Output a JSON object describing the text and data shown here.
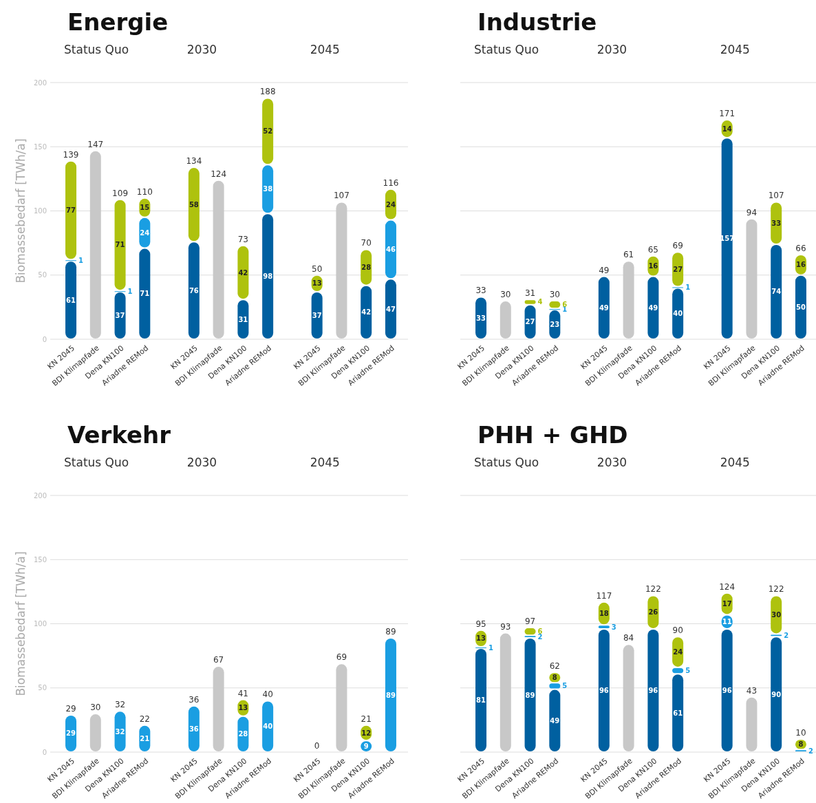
{
  "chart_data": [
    {
      "type": "bar",
      "stacked": true,
      "title": "Energie",
      "ylabel": "Biomassebedarf [TWh/a]",
      "annotations": [
        "Status Quo",
        "2030",
        "2045"
      ],
      "categories": [
        "KN 2045",
        "BDI Klimapfade",
        "Dena KN100",
        "Ariadne REMod",
        "KN 2045",
        "BDI Klimapfade",
        "Dena KN100",
        "Ariadne REMod",
        "KN 2045",
        "BDI Klimapfade",
        "Dena KN100",
        "Ariadne REMod"
      ],
      "series": [
        {
          "color": "#0060a0",
          "values": [
            61,
            null,
            37,
            71,
            76,
            null,
            31,
            98,
            37,
            null,
            42,
            47
          ],
          "value_labels": [
            "61",
            null,
            "37",
            "71",
            "76",
            null,
            "31",
            "98",
            "37",
            null,
            "42",
            "47"
          ]
        },
        {
          "color": "#1a9ee2",
          "values": [
            1,
            null,
            1,
            24,
            null,
            null,
            null,
            38,
            null,
            null,
            null,
            46
          ],
          "value_labels": [
            "1",
            null,
            "1",
            "24",
            null,
            null,
            null,
            "38",
            null,
            null,
            null,
            "46"
          ]
        },
        {
          "color": "#aec20e",
          "values": [
            77,
            null,
            71,
            15,
            58,
            null,
            42,
            52,
            13,
            null,
            28,
            24
          ],
          "value_labels": [
            "77",
            null,
            "71",
            "15",
            "58",
            null,
            "42",
            "52",
            "13",
            null,
            "28",
            "24"
          ]
        },
        {
          "color": "#c8c8c8",
          "values": [
            null,
            147,
            null,
            null,
            null,
            124,
            null,
            null,
            null,
            107,
            null,
            null
          ]
        }
      ],
      "totals": [
        "139",
        "147",
        "109",
        "110",
        "134",
        "124",
        "73",
        "188",
        "50",
        "107",
        "70",
        "116"
      ],
      "ylim": [
        0,
        200
      ],
      "yticks": [
        0,
        50,
        100,
        150,
        200
      ],
      "grid": "y"
    },
    {
      "type": "bar",
      "stacked": true,
      "title": "Industrie",
      "annotations": [
        "Status Quo",
        "2030",
        "2045"
      ],
      "categories": [
        "KN 2045",
        "BDI Klimapfade",
        "Dena KN100",
        "Ariadne REMod",
        "KN 2045",
        "BDI Klimapfade",
        "Dena KN100",
        "Ariadne REMod",
        "KN 2045",
        "BDI Klimapfade",
        "Dena KN100",
        "Ariadne REMod"
      ],
      "series": [
        {
          "color": "#0060a0",
          "values": [
            33,
            null,
            27,
            23,
            49,
            null,
            49,
            40,
            157,
            null,
            74,
            50
          ],
          "value_labels": [
            "33",
            null,
            "27",
            "23",
            "49",
            null,
            "49",
            "40",
            "157",
            null,
            "74",
            "50"
          ]
        },
        {
          "color": "#1a9ee2",
          "values": [
            null,
            null,
            null,
            1,
            null,
            null,
            null,
            1,
            null,
            null,
            null,
            null
          ],
          "value_labels": [
            null,
            null,
            null,
            "1",
            null,
            null,
            null,
            "1",
            null,
            null,
            null,
            null
          ]
        },
        {
          "color": "#aec20e",
          "values": [
            null,
            null,
            4,
            6,
            null,
            null,
            16,
            27,
            14,
            null,
            33,
            16
          ],
          "value_labels": [
            null,
            null,
            "4",
            "6",
            null,
            null,
            "16",
            "27",
            "14",
            null,
            "33",
            "16"
          ]
        },
        {
          "color": "#c8c8c8",
          "values": [
            null,
            30,
            null,
            null,
            null,
            61,
            null,
            null,
            null,
            94,
            null,
            null
          ]
        }
      ],
      "totals": [
        "33",
        "30",
        "31",
        "30",
        "49",
        "61",
        "65",
        "69",
        "171",
        "94",
        "107",
        "66"
      ],
      "ylim": [
        0,
        200
      ],
      "yticks": [
        0,
        50,
        100,
        150,
        200
      ],
      "grid": "y",
      "tick_labels": "x"
    },
    {
      "type": "bar",
      "stacked": true,
      "title": "Verkehr",
      "ylabel": "Biomassebedarf [TWh/a]",
      "annotations": [
        "Status Quo",
        "2030",
        "2045"
      ],
      "categories": [
        "KN 2045",
        "BDI Klimapfade",
        "Dena KN100",
        "Ariadne REMod",
        "KN 2045",
        "BDI Klimapfade",
        "Dena KN100",
        "Ariadne REMod",
        "KN 2045",
        "BDI Klimapfade",
        "Dena KN100",
        "Ariadne REMod"
      ],
      "series": [
        {
          "color": "#1a9ee2",
          "values": [
            29,
            null,
            32,
            21,
            36,
            null,
            28,
            40,
            null,
            null,
            9,
            89
          ],
          "value_labels": [
            "29",
            null,
            "32",
            "21",
            "36",
            null,
            "28",
            "40",
            null,
            null,
            "9",
            "89"
          ]
        },
        {
          "color": "#aec20e",
          "values": [
            null,
            null,
            null,
            null,
            null,
            null,
            13,
            null,
            null,
            null,
            12,
            null
          ],
          "value_labels": [
            null,
            null,
            null,
            null,
            null,
            null,
            "13",
            null,
            null,
            null,
            "12",
            null
          ]
        },
        {
          "color": "#c8c8c8",
          "values": [
            null,
            30,
            null,
            null,
            null,
            67,
            null,
            null,
            null,
            69,
            null,
            null
          ]
        }
      ],
      "totals": [
        "29",
        "30",
        "32",
        "22",
        "36",
        "67",
        "41",
        "40",
        "0",
        "69",
        "21",
        "89"
      ],
      "ylim": [
        0,
        200
      ],
      "yticks": [
        0,
        50,
        100,
        150,
        200
      ],
      "grid": "y"
    },
    {
      "type": "bar",
      "stacked": true,
      "title": "PHH + GHD",
      "annotations": [
        "Status Quo",
        "2030",
        "2045"
      ],
      "categories": [
        "KN 2045",
        "BDI Klimapfade",
        "Dena KN100",
        "Ariadne REMod",
        "KN 2045",
        "BDI Klimapfade",
        "Dena KN100",
        "Ariadne REMod",
        "KN 2045",
        "BDI Klimapfade",
        "Dena KN100",
        "Ariadne REMod"
      ],
      "series": [
        {
          "color": "#0060a0",
          "values": [
            81,
            null,
            89,
            49,
            96,
            null,
            96,
            61,
            96,
            null,
            90,
            null
          ],
          "value_labels": [
            "81",
            null,
            "89",
            "49",
            "96",
            null,
            "96",
            "61",
            "96",
            null,
            "90",
            null
          ]
        },
        {
          "color": "#1a9ee2",
          "values": [
            1,
            null,
            2,
            5,
            3,
            null,
            null,
            5,
            11,
            null,
            2,
            2
          ],
          "value_labels": [
            "1",
            null,
            "2",
            "5",
            "3",
            null,
            null,
            "5",
            "11",
            null,
            "2",
            "2"
          ]
        },
        {
          "color": "#aec20e",
          "values": [
            13,
            null,
            6,
            8,
            18,
            null,
            26,
            24,
            17,
            null,
            30,
            8
          ],
          "value_labels": [
            "13",
            null,
            "6",
            "8",
            "18",
            null,
            "26",
            "24",
            "17",
            null,
            "30",
            "8"
          ]
        },
        {
          "color": "#c8c8c8",
          "values": [
            null,
            93,
            null,
            null,
            null,
            84,
            null,
            null,
            null,
            43,
            null,
            null
          ]
        }
      ],
      "totals": [
        "95",
        "93",
        "97",
        "62",
        "117",
        "84",
        "122",
        "90",
        "124",
        "43",
        "122",
        "10"
      ],
      "ylim": [
        0,
        200
      ],
      "yticks": [
        0,
        50,
        100,
        150,
        200
      ],
      "grid": "y",
      "tick_labels": "x"
    }
  ]
}
